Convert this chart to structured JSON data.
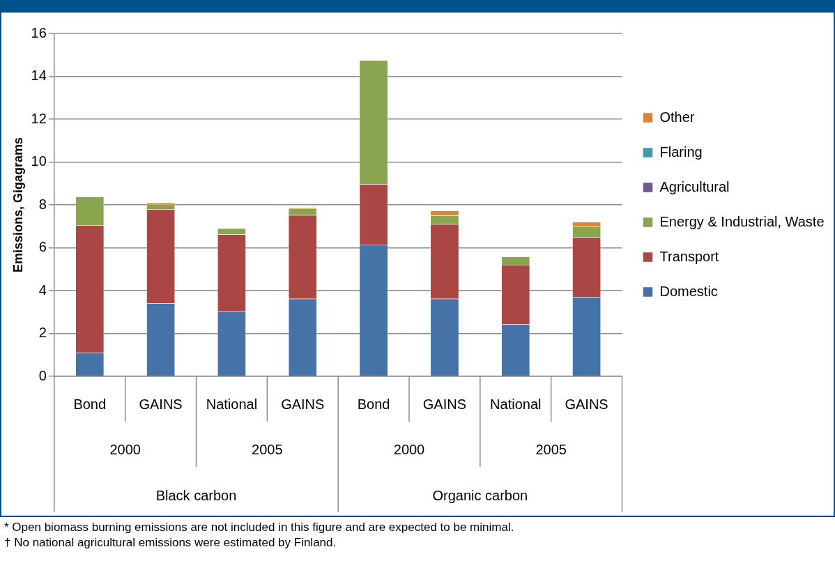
{
  "chart_data": {
    "type": "bar",
    "stacked": true,
    "ylabel": "Emissions, Gigagrams",
    "categories": [
      "Bond",
      "GAINS",
      "National",
      "GAINS",
      "Bond",
      "GAINS",
      "National",
      "GAINS"
    ],
    "series": [
      {
        "name": "Domestic",
        "color": "#4572a7",
        "values": [
          1.1,
          3.4,
          3.02,
          3.62,
          6.15,
          3.62,
          2.43,
          3.7
        ]
      },
      {
        "name": "Transport",
        "color": "#aa4643",
        "values": [
          5.95,
          4.4,
          3.6,
          3.9,
          2.82,
          3.48,
          2.77,
          2.8
        ]
      },
      {
        "name": "Energy & Industrial, Waste",
        "color": "#89a54e",
        "values": [
          1.32,
          0.23,
          0.28,
          0.32,
          5.78,
          0.4,
          0.38,
          0.48
        ]
      },
      {
        "name": "Agricultural",
        "color": "#71588f",
        "values": [
          0,
          0,
          0,
          0,
          0,
          0,
          0,
          0
        ]
      },
      {
        "name": "Flaring",
        "color": "#4198af",
        "values": [
          0,
          0,
          0,
          0,
          0,
          0,
          0,
          0
        ]
      },
      {
        "name": "Other",
        "color": "#db843d",
        "values": [
          0,
          0.07,
          0,
          0.03,
          0,
          0.22,
          0,
          0.22
        ]
      }
    ],
    "ylim": [
      0,
      16
    ],
    "yticks": [
      0,
      2,
      4,
      6,
      8,
      10,
      12,
      14,
      16
    ],
    "grid": "y",
    "legend": "right",
    "annotations": [
      "2000",
      "2005",
      "2000",
      "2005",
      "Black carbon",
      "Organic carbon",
      "*  Open biomass burning emissions are not included in this figure and are expected to be minimal.",
      "†  No national agricultural emissions were estimated by Finland."
    ]
  }
}
